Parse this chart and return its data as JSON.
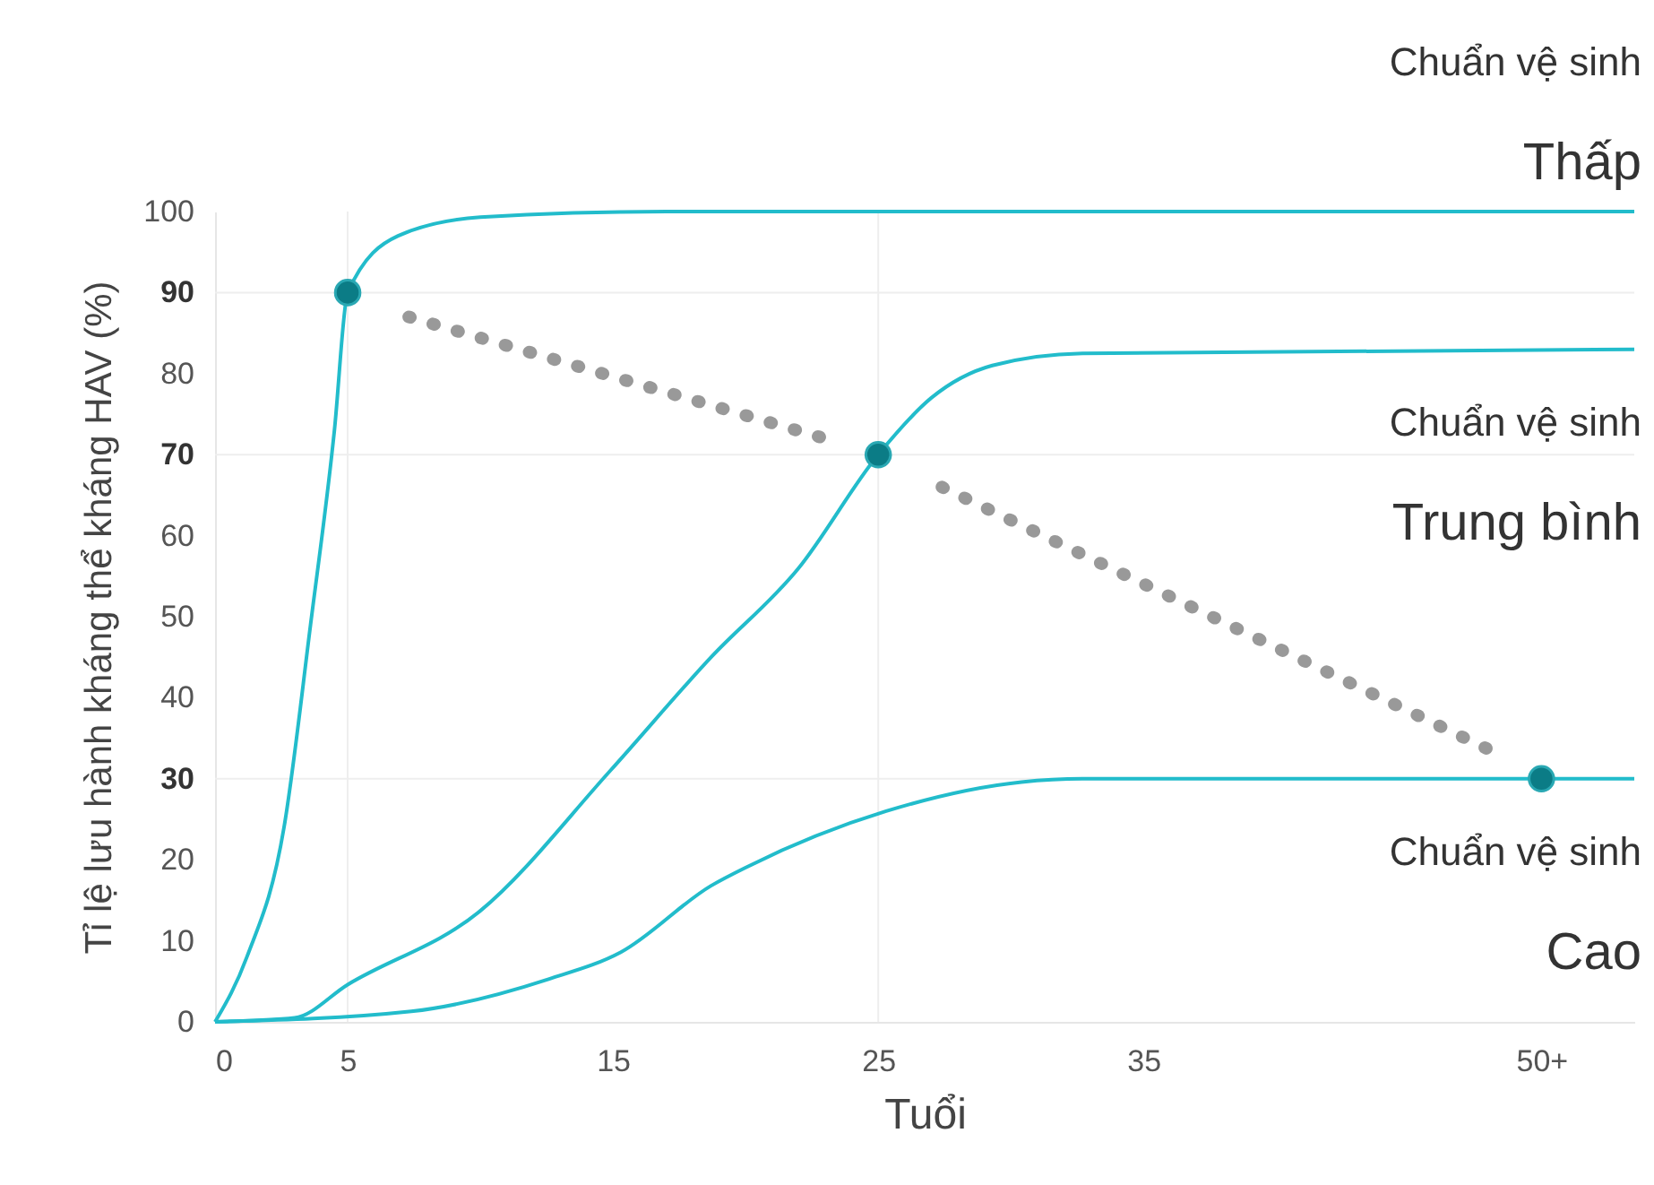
{
  "chart_data": {
    "type": "line",
    "xlabel": "Tuổi",
    "ylabel": "Tỉ lệ lưu hành kháng thể kháng HAV (%)",
    "xlim": [
      0,
      53.5
    ],
    "xticks": [
      0,
      5,
      15,
      25,
      35,
      {
        "value": 50,
        "label": "50+"
      }
    ],
    "ylim": [
      0,
      100
    ],
    "yticks": [
      0,
      10,
      20,
      30,
      40,
      50,
      60,
      70,
      80,
      90,
      100
    ],
    "grid": false,
    "line_style": "solid",
    "series": [
      {
        "name": "Chuẩn vệ sinh\nThấp",
        "color": "#22bccb",
        "x": [
          0,
          1.2,
          2.6,
          3.6,
          4.5,
          5,
          6.9,
          10,
          17,
          53.5
        ],
        "values": [
          0,
          8,
          24,
          49,
          73,
          90,
          97,
          99.3,
          100,
          100
        ]
      },
      {
        "name": "Chuẩn vệ sinh\nTrung bình",
        "color": "#22bccb",
        "x": [
          0,
          3,
          5,
          10,
          14.9,
          18.7,
          22,
          25,
          27,
          29.3,
          32.7,
          53.5
        ],
        "values": [
          0,
          0.5,
          4.6,
          13.7,
          31,
          45,
          56,
          70,
          77,
          81,
          82.5,
          83
        ]
      },
      {
        "name": "Chuẩn vệ sinh\nCao",
        "color": "#22bccb",
        "x": [
          0,
          7.4,
          12.6,
          15.3,
          18.7,
          20.1,
          25.3,
          30.4,
          32.7,
          53.5
        ],
        "values": [
          0,
          1.3,
          5.3,
          8.6,
          16.8,
          19.2,
          26,
          29.6,
          30,
          30
        ]
      },
      {
        "type": "line",
        "line_style": "dotted",
        "color": "#999999",
        "x": [
          7.3,
          23.5,
          25,
          27.4,
          48.4
        ],
        "values": [
          87,
          71.5,
          null,
          66,
          33
        ]
      },
      {
        "type": "scatter",
        "marker": "circle",
        "color": "#0b7c86",
        "x": [
          5,
          25,
          50
        ],
        "values": [
          90,
          70,
          30
        ]
      }
    ],
    "ref_lines": [
      {
        "axis": "y",
        "value": 30,
        "color": "#eeeeee"
      },
      {
        "axis": "y",
        "value": 70,
        "color": "#eeeeee"
      },
      {
        "axis": "y",
        "value": 90,
        "color": "#eeeeee"
      },
      {
        "axis": "x",
        "value": 5,
        "color": "#eeeeee"
      },
      {
        "axis": "x",
        "value": 25,
        "color": "#eeeeee"
      }
    ]
  }
}
